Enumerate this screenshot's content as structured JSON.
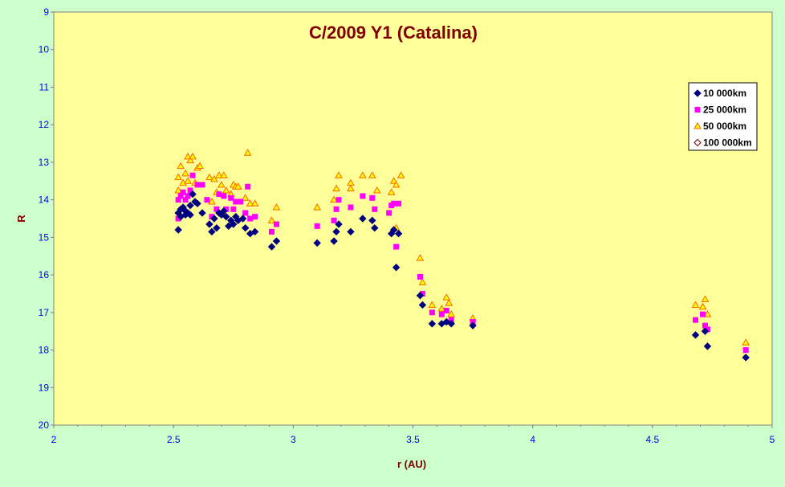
{
  "colors": {
    "background": "#ccffcc",
    "plot_area": "#ffff99",
    "title": "#800000",
    "axis_text": "#0000ff",
    "axis_title": "#800000",
    "series_10k": "#000080",
    "series_25k": "#ff00ff",
    "series_50k_stroke": "#ff6600",
    "series_50k_fill": "#ffff00",
    "series_100k_stroke": "#800000"
  },
  "chart_data": {
    "type": "scatter",
    "title": "C/2009 Y1 (Catalina)",
    "xlabel": "r (AU)",
    "ylabel": "R",
    "xlim": [
      2,
      5
    ],
    "ylim": [
      9,
      20
    ],
    "y_inverted": true,
    "xticks": [
      2,
      2.5,
      3,
      3.5,
      4,
      4.5,
      5
    ],
    "xtick_labels": [
      "2",
      "2.5",
      "3",
      "3.5",
      "4",
      "4.5",
      "5"
    ],
    "yticks": [
      9,
      10,
      11,
      12,
      13,
      14,
      15,
      16,
      17,
      18,
      19,
      20
    ],
    "ytick_labels": [
      "9",
      "10",
      "11",
      "12",
      "13",
      "14",
      "15",
      "16",
      "17",
      "18",
      "19",
      "20"
    ],
    "grid": false,
    "legend_position": "right",
    "series": [
      {
        "name": "10 000km",
        "marker": "diamond",
        "points": [
          [
            2.52,
            14.35
          ],
          [
            2.52,
            14.8
          ],
          [
            2.53,
            14.25
          ],
          [
            2.53,
            14.45
          ],
          [
            2.54,
            14.2
          ],
          [
            2.55,
            14.3
          ],
          [
            2.55,
            14.4
          ],
          [
            2.56,
            14.35
          ],
          [
            2.57,
            14.15
          ],
          [
            2.57,
            14.4
          ],
          [
            2.58,
            13.85
          ],
          [
            2.59,
            14.05
          ],
          [
            2.6,
            14.1
          ],
          [
            2.62,
            14.35
          ],
          [
            2.65,
            14.65
          ],
          [
            2.66,
            14.85
          ],
          [
            2.67,
            14.5
          ],
          [
            2.68,
            14.75
          ],
          [
            2.69,
            14.35
          ],
          [
            2.7,
            14.4
          ],
          [
            2.71,
            14.3
          ],
          [
            2.72,
            14.45
          ],
          [
            2.73,
            14.7
          ],
          [
            2.74,
            14.55
          ],
          [
            2.75,
            14.65
          ],
          [
            2.76,
            14.45
          ],
          [
            2.77,
            14.55
          ],
          [
            2.79,
            14.5
          ],
          [
            2.8,
            14.75
          ],
          [
            2.82,
            14.9
          ],
          [
            2.84,
            14.85
          ],
          [
            2.91,
            15.25
          ],
          [
            2.93,
            15.1
          ],
          [
            3.1,
            15.15
          ],
          [
            3.17,
            15.1
          ],
          [
            3.18,
            14.85
          ],
          [
            3.19,
            14.65
          ],
          [
            3.24,
            14.85
          ],
          [
            3.29,
            14.5
          ],
          [
            3.33,
            14.55
          ],
          [
            3.34,
            14.75
          ],
          [
            3.41,
            14.9
          ],
          [
            3.42,
            14.8
          ],
          [
            3.43,
            15.8
          ],
          [
            3.44,
            14.9
          ],
          [
            3.53,
            16.55
          ],
          [
            3.54,
            16.8
          ],
          [
            3.58,
            17.3
          ],
          [
            3.62,
            17.3
          ],
          [
            3.64,
            17.25
          ],
          [
            3.66,
            17.3
          ],
          [
            3.75,
            17.35
          ],
          [
            4.68,
            17.6
          ],
          [
            4.72,
            17.5
          ],
          [
            4.73,
            17.9
          ],
          [
            4.89,
            18.2
          ]
        ]
      },
      {
        "name": "25 000km",
        "marker": "square",
        "points": [
          [
            2.52,
            14.0
          ],
          [
            2.52,
            14.5
          ],
          [
            2.53,
            13.9
          ],
          [
            2.54,
            13.8
          ],
          [
            2.55,
            14.0
          ],
          [
            2.56,
            13.9
          ],
          [
            2.57,
            13.75
          ],
          [
            2.58,
            13.35
          ],
          [
            2.6,
            13.6
          ],
          [
            2.62,
            13.6
          ],
          [
            2.64,
            14.0
          ],
          [
            2.66,
            14.45
          ],
          [
            2.68,
            14.25
          ],
          [
            2.69,
            13.85
          ],
          [
            2.71,
            13.9
          ],
          [
            2.72,
            14.25
          ],
          [
            2.74,
            13.95
          ],
          [
            2.75,
            14.25
          ],
          [
            2.76,
            14.05
          ],
          [
            2.78,
            14.05
          ],
          [
            2.8,
            14.35
          ],
          [
            2.81,
            13.65
          ],
          [
            2.82,
            14.5
          ],
          [
            2.84,
            14.45
          ],
          [
            2.91,
            14.85
          ],
          [
            2.93,
            14.65
          ],
          [
            3.1,
            14.7
          ],
          [
            3.17,
            14.55
          ],
          [
            3.18,
            14.25
          ],
          [
            3.19,
            14.0
          ],
          [
            3.24,
            14.2
          ],
          [
            3.29,
            13.9
          ],
          [
            3.33,
            13.95
          ],
          [
            3.34,
            14.25
          ],
          [
            3.4,
            14.35
          ],
          [
            3.41,
            14.15
          ],
          [
            3.42,
            14.1
          ],
          [
            3.43,
            15.25
          ],
          [
            3.44,
            14.1
          ],
          [
            3.53,
            16.05
          ],
          [
            3.54,
            16.5
          ],
          [
            3.58,
            17.0
          ],
          [
            3.62,
            17.05
          ],
          [
            3.64,
            16.95
          ],
          [
            3.66,
            17.2
          ],
          [
            3.75,
            17.25
          ],
          [
            4.68,
            17.2
          ],
          [
            4.71,
            17.05
          ],
          [
            4.72,
            17.35
          ],
          [
            4.73,
            17.45
          ],
          [
            4.89,
            18.0
          ]
        ]
      },
      {
        "name": "50 000km",
        "marker": "triangle",
        "points": [
          [
            2.52,
            13.75
          ],
          [
            2.52,
            13.4
          ],
          [
            2.53,
            13.1
          ],
          [
            2.54,
            13.55
          ],
          [
            2.55,
            13.3
          ],
          [
            2.56,
            12.85
          ],
          [
            2.56,
            13.5
          ],
          [
            2.57,
            12.95
          ],
          [
            2.58,
            12.85
          ],
          [
            2.59,
            13.55
          ],
          [
            2.6,
            13.15
          ],
          [
            2.61,
            13.1
          ],
          [
            2.65,
            13.4
          ],
          [
            2.66,
            14.05
          ],
          [
            2.67,
            13.45
          ],
          [
            2.68,
            13.8
          ],
          [
            2.69,
            13.35
          ],
          [
            2.7,
            13.6
          ],
          [
            2.71,
            13.35
          ],
          [
            2.72,
            13.75
          ],
          [
            2.74,
            13.85
          ],
          [
            2.75,
            13.6
          ],
          [
            2.76,
            13.65
          ],
          [
            2.77,
            13.65
          ],
          [
            2.8,
            13.95
          ],
          [
            2.81,
            12.75
          ],
          [
            2.82,
            14.1
          ],
          [
            2.84,
            14.1
          ],
          [
            2.91,
            14.55
          ],
          [
            2.93,
            14.2
          ],
          [
            3.1,
            14.2
          ],
          [
            3.17,
            14.0
          ],
          [
            3.18,
            13.7
          ],
          [
            3.19,
            13.35
          ],
          [
            3.24,
            13.55
          ],
          [
            3.24,
            13.7
          ],
          [
            3.29,
            13.35
          ],
          [
            3.33,
            13.35
          ],
          [
            3.35,
            13.75
          ],
          [
            3.41,
            13.8
          ],
          [
            3.42,
            13.5
          ],
          [
            3.43,
            13.6
          ],
          [
            3.43,
            14.75
          ],
          [
            3.45,
            13.35
          ],
          [
            3.53,
            15.55
          ],
          [
            3.54,
            16.2
          ],
          [
            3.58,
            16.8
          ],
          [
            3.62,
            16.9
          ],
          [
            3.64,
            16.6
          ],
          [
            3.65,
            16.75
          ],
          [
            3.66,
            17.05
          ],
          [
            3.75,
            17.15
          ],
          [
            4.68,
            16.8
          ],
          [
            4.71,
            16.85
          ],
          [
            4.72,
            16.65
          ],
          [
            4.73,
            17.05
          ],
          [
            4.89,
            17.8
          ]
        ]
      },
      {
        "name": "100 000km",
        "marker": "diamond-open",
        "points": []
      }
    ]
  }
}
